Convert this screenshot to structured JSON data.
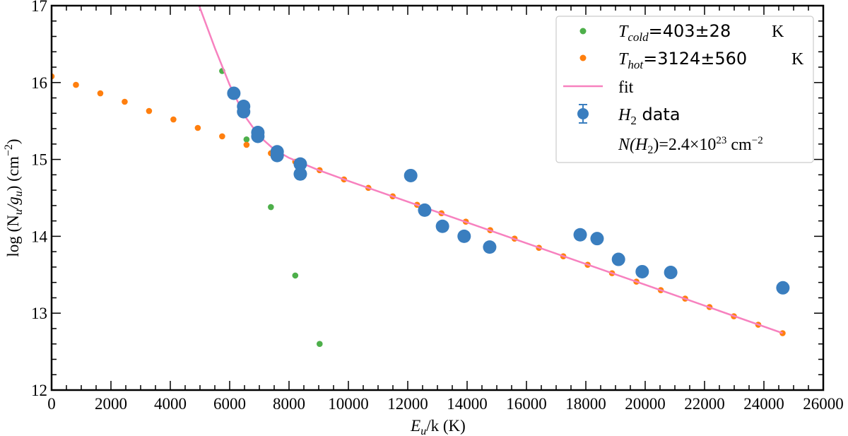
{
  "chart_data": {
    "type": "scatter",
    "xlabel": {
      "main": "E",
      "sub": "u",
      "rest": "/k (K)"
    },
    "ylabel": {
      "prefix": "log (N",
      "sub1": "u",
      "mid": "/g",
      "sub2": "u",
      "suffix": ") (cm",
      "sup": "−2",
      "close": ")"
    },
    "xlim": [
      0,
      26000
    ],
    "ylim": [
      12,
      17
    ],
    "xticks": [
      "0",
      "2000",
      "4000",
      "6000",
      "8000",
      "10000",
      "12000",
      "14000",
      "16000",
      "18000",
      "20000",
      "22000",
      "24000",
      "26000"
    ],
    "yticks": [
      "12",
      "13",
      "14",
      "15",
      "16",
      "17"
    ],
    "grid": false,
    "legend_position": "top-right",
    "series": [
      {
        "key": "cold",
        "color": "#4daf4a",
        "marker": "small-dot",
        "x": [
          5747,
          6568,
          7389,
          8210,
          9031
        ],
        "y": [
          16.15,
          15.26,
          14.38,
          13.49,
          12.6
        ]
      },
      {
        "key": "hot",
        "color": "#ff7f0e",
        "marker": "small-dot",
        "x": [
          0,
          821,
          1642,
          2463,
          3284,
          4105,
          4926,
          5747,
          6568,
          7389,
          8210,
          9031,
          9852,
          10673,
          11494,
          12315,
          13136,
          13957,
          14778,
          15599,
          16420,
          17241,
          18062,
          18883,
          19704,
          20525,
          21346,
          22167,
          22988,
          23809,
          24630
        ],
        "y": [
          16.08,
          15.97,
          15.86,
          15.75,
          15.63,
          15.52,
          15.41,
          15.3,
          15.19,
          15.08,
          14.97,
          14.86,
          14.74,
          14.63,
          14.52,
          14.41,
          14.3,
          14.19,
          14.08,
          13.97,
          13.85,
          13.74,
          13.63,
          13.52,
          13.41,
          13.3,
          13.19,
          13.08,
          12.96,
          12.85,
          12.74
        ]
      },
      {
        "key": "fit",
        "color": "#f781bf",
        "marker": "line",
        "x": [
          4900,
          5000,
          5500,
          6000,
          6500,
          7000,
          7500,
          8000,
          9000,
          10000,
          12000,
          16000,
          20000,
          24630
        ],
        "y": [
          17.07,
          16.97,
          16.45,
          15.97,
          15.57,
          15.3,
          15.13,
          15.02,
          14.86,
          14.72,
          14.45,
          13.91,
          13.37,
          12.74
        ]
      },
      {
        "key": "data",
        "color": "#3a7ebf",
        "marker": "large-dot-errorbar",
        "x": [
          6140,
          6470,
          6470,
          6950,
          6950,
          7600,
          7600,
          8380,
          8380,
          12100,
          12570,
          13170,
          13900,
          14760,
          17810,
          18380,
          19100,
          19900,
          20860,
          24640
        ],
        "y": [
          15.86,
          15.69,
          15.62,
          15.35,
          15.3,
          15.1,
          15.05,
          14.94,
          14.81,
          14.79,
          14.34,
          14.13,
          14.0,
          13.86,
          14.02,
          13.97,
          13.7,
          13.54,
          13.53,
          13.33
        ]
      }
    ],
    "legend": {
      "cold": {
        "sym": "T",
        "sub": "cold",
        "value": "=403±28",
        "unit": "K"
      },
      "hot": {
        "sym": "T",
        "sub": "hot",
        "value": "=3124±560",
        "unit": "K"
      },
      "fit": {
        "label": "fit"
      },
      "data": {
        "sym": "H",
        "sub": "2",
        "label": " data"
      },
      "note": {
        "pre": "N(H",
        "sub": "2",
        "mid": ")=2.4×10",
        "sup": "23",
        "unit": " cm",
        "unit_sup": "−2"
      }
    }
  }
}
